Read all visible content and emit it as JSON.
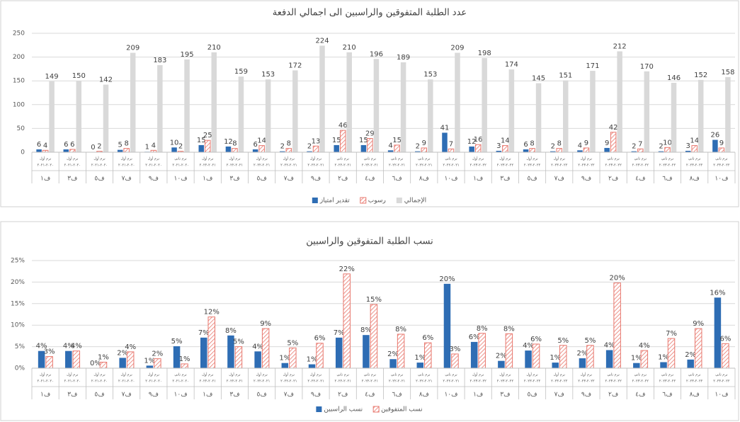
{
  "chart_data": [
    {
      "type": "bar",
      "title": "عدد الطلبة المتفوقين والراسبين الى اجمالي الدفعة",
      "categories": [
        "ف١",
        "ف٣",
        "ف٥",
        "ف٧",
        "ف٩",
        "ف١٠",
        "ف١",
        "ف٣",
        "ف٥",
        "ف٧",
        "ف٩",
        "ف٢",
        "ف٤",
        "ف٦",
        "ف٨",
        "ف١٠",
        "ف١",
        "ف٣",
        "ف٥",
        "ف٧",
        "ف٩",
        "ف٢",
        "ف٤",
        "ف٦",
        "ف٨",
        "ف١٠"
      ],
      "terms": [
        "ترم أول",
        "ترم أول",
        "ترم أول",
        "ترم أول",
        "ترم أول",
        "ترم ثاني",
        "ترم أول",
        "ترم أول",
        "ترم أول",
        "ترم أول",
        "ترم أول",
        "ترم ثاني",
        "ترم ثاني",
        "ترم ثاني",
        "ترم ثاني",
        "ترم ثاني",
        "ترم أول",
        "ترم أول",
        "ترم أول",
        "ترم أول",
        "ترم أول",
        "ترم ثاني",
        "ترم ثاني",
        "ترم ثاني",
        "ترم ثاني",
        "ترم ثاني"
      ],
      "years": [
        "٢٠٢٠-٢٠٢١",
        "٢٠٢٠-٢٠٢١",
        "٢٠٢٠-٢٠٢١",
        "٢٠٢٠-٢٠٢١",
        "٢٠٢٠-٢٠٢١",
        "٢٠٢٠-٢٠٢١",
        "٢٠٢١-٢٠٢٢",
        "٢٠٢١-٢٠٢٢",
        "٢٠٢١-٢٠٢٢",
        "٢٠٢١-٢٠٢٢",
        "٢٠٢١-٢٠٢٢",
        "٢٠٢١-٢٠٢٢",
        "٢٠٢١-٢٠٢٢",
        "٢٠٢١-٢٠٢٢",
        "٢٠٢١-٢٠٢٢",
        "٢٠٢١-٢٠٢٢",
        "٢٠٢٢-٢٠٢٣",
        "٢٠٢٢-٢٠٢٣",
        "٢٠٢٢-٢٠٢٣",
        "٢٠٢٢-٢٠٢٣",
        "٢٠٢٢-٢٠٢٣",
        "٢٠٢٢-٢٠٢٣",
        "٢٠٢٢-٢٠٢٣",
        "٢٠٢٢-٢٠٢٣",
        "٢٠٢٢-٢٠٢٣",
        "٢٠٢٢-٢٠٢٣"
      ],
      "series": [
        {
          "name": "تقدير امتياز",
          "color": "#2e6db4",
          "values": [
            6,
            6,
            0,
            5,
            1,
            10,
            15,
            12,
            6,
            2,
            2,
            15,
            15,
            4,
            2,
            41,
            12,
            3,
            6,
            2,
            4,
            9,
            2,
            2,
            3,
            26
          ]
        },
        {
          "name": "رسوب",
          "color": "#e8776d",
          "fill_style": "hatch",
          "values": [
            4,
            6,
            2,
            8,
            4,
            2,
            25,
            8,
            14,
            8,
            13,
            46,
            29,
            15,
            9,
            7,
            16,
            14,
            8,
            8,
            9,
            42,
            7,
            10,
            14,
            9
          ]
        },
        {
          "name": "الإجمالي",
          "color": "#d9d9d9",
          "values": [
            149,
            150,
            142,
            209,
            183,
            195,
            210,
            159,
            153,
            172,
            224,
            210,
            196,
            189,
            153,
            209,
            198,
            174,
            145,
            151,
            171,
            212,
            170,
            146,
            152,
            158
          ]
        }
      ],
      "ylim": [
        0,
        250
      ],
      "yticks": [
        0,
        50,
        100,
        150,
        200,
        250
      ],
      "grid": true,
      "legend": "bottom"
    },
    {
      "type": "bar",
      "title": "نسب الطلبة المتفوقين والراسبين",
      "categories": [
        "ف١",
        "ف٣",
        "ف٥",
        "ف٧",
        "ف٩",
        "ف١٠",
        "ف١",
        "ف٣",
        "ف٥",
        "ف٧",
        "ف٩",
        "ف٢",
        "ف٤",
        "ف٦",
        "ف٨",
        "ف١٠",
        "ف١",
        "ف٣",
        "ف٥",
        "ف٧",
        "ف٩",
        "ف٢",
        "ف٤",
        "ف٦",
        "ف٨",
        "ف١٠"
      ],
      "terms": [
        "ترم أول",
        "ترم أول",
        "ترم أول",
        "ترم أول",
        "ترم أول",
        "ترم ثاني",
        "ترم أول",
        "ترم أول",
        "ترم أول",
        "ترم أول",
        "ترم أول",
        "ترم ثاني",
        "ترم ثاني",
        "ترم ثاني",
        "ترم ثاني",
        "ترم ثاني",
        "ترم أول",
        "ترم أول",
        "ترم أول",
        "ترم أول",
        "ترم أول",
        "ترم ثاني",
        "ترم ثاني",
        "ترم ثاني",
        "ترم ثاني",
        "ترم ثاني"
      ],
      "years": [
        "٢٠٢٠-٢٠٢١",
        "٢٠٢٠-٢٠٢١",
        "٢٠٢٠-٢٠٢١",
        "٢٠٢٠-٢٠٢١",
        "٢٠٢٠-٢٠٢١",
        "٢٠٢٠-٢٠٢١",
        "٢٠٢١-٢٠٢٢",
        "٢٠٢١-٢٠٢٢",
        "٢٠٢١-٢٠٢٢",
        "٢٠٢١-٢٠٢٢",
        "٢٠٢١-٢٠٢٢",
        "٢٠٢١-٢٠٢٢",
        "٢٠٢١-٢٠٢٢",
        "٢٠٢١-٢٠٢٢",
        "٢٠٢١-٢٠٢٢",
        "٢٠٢١-٢٠٢٢",
        "٢٠٢٢-٢٠٢٣",
        "٢٠٢٢-٢٠٢٣",
        "٢٠٢٢-٢٠٢٣",
        "٢٠٢٢-٢٠٢٣",
        "٢٠٢٢-٢٠٢٣",
        "٢٠٢٢-٢٠٢٣",
        "٢٠٢٢-٢٠٢٣",
        "٢٠٢٢-٢٠٢٣",
        "٢٠٢٢-٢٠٢٣",
        "٢٠٢٢-٢٠٢٣"
      ],
      "series": [
        {
          "name": "نسب الراسبين",
          "color": "#2e6db4",
          "values": [
            4.0,
            4.0,
            0,
            2.4,
            0.6,
            5.1,
            7.1,
            7.6,
            3.9,
            1.2,
            0.9,
            7.1,
            7.7,
            2.1,
            1.3,
            19.6,
            6.1,
            1.7,
            4.1,
            1.3,
            2.3,
            4.2,
            1.2,
            1.4,
            2.0,
            16.4
          ],
          "value_labels": [
            "4%",
            "4%",
            "0%",
            "2%",
            "1%",
            "5%",
            "7%",
            "8%",
            "4%",
            "1%",
            "1%",
            "7%",
            "8%",
            "2%",
            "1%",
            "20%",
            "6%",
            "2%",
            "4%",
            "1%",
            "2%",
            "4%",
            "1%",
            "1%",
            "2%",
            "16%"
          ]
        },
        {
          "name": "نسب المتفوقين",
          "color": "#e8776d",
          "fill_style": "hatch",
          "values": [
            2.7,
            4.0,
            1.4,
            3.8,
            2.2,
            1.0,
            11.9,
            5.0,
            9.2,
            4.7,
            5.8,
            21.9,
            14.8,
            7.9,
            5.9,
            3.3,
            8.1,
            8.0,
            5.6,
            5.3,
            5.3,
            19.8,
            4.1,
            6.9,
            9.2,
            5.7
          ],
          "value_labels": [
            "3%",
            "4%",
            "1%",
            "4%",
            "2%",
            "1%",
            "12%",
            "5%",
            "9%",
            "5%",
            "6%",
            "22%",
            "15%",
            "8%",
            "6%",
            "3%",
            "8%",
            "8%",
            "6%",
            "5%",
            "5%",
            "20%",
            "4%",
            "7%",
            "9%",
            "6%"
          ]
        }
      ],
      "ylim": [
        0,
        25
      ],
      "yticks": [
        {
          "value": 0,
          "label": "0%"
        },
        {
          "value": 5,
          "label": "5%"
        },
        {
          "value": 10,
          "label": "10%"
        },
        {
          "value": 15,
          "label": "15%"
        },
        {
          "value": 20,
          "label": "20%"
        },
        {
          "value": 25,
          "label": "25%"
        }
      ],
      "grid": true,
      "legend": "bottom"
    }
  ]
}
